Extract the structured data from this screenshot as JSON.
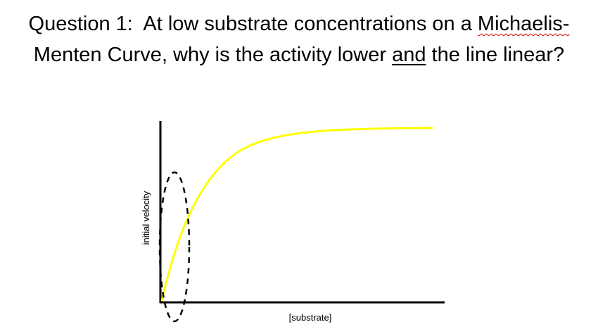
{
  "title": {
    "line1": {
      "lead": "Question 1:  At low substrate concentrations on a ",
      "flagged": "Michaelis-"
    },
    "line2": {
      "lead": "Menten Curve, why is the activity lower ",
      "underlined": "and",
      "tail": " the line linear?"
    }
  },
  "diagram": {
    "y_label": "initial velocity",
    "x_label": "[substrate]"
  }
}
